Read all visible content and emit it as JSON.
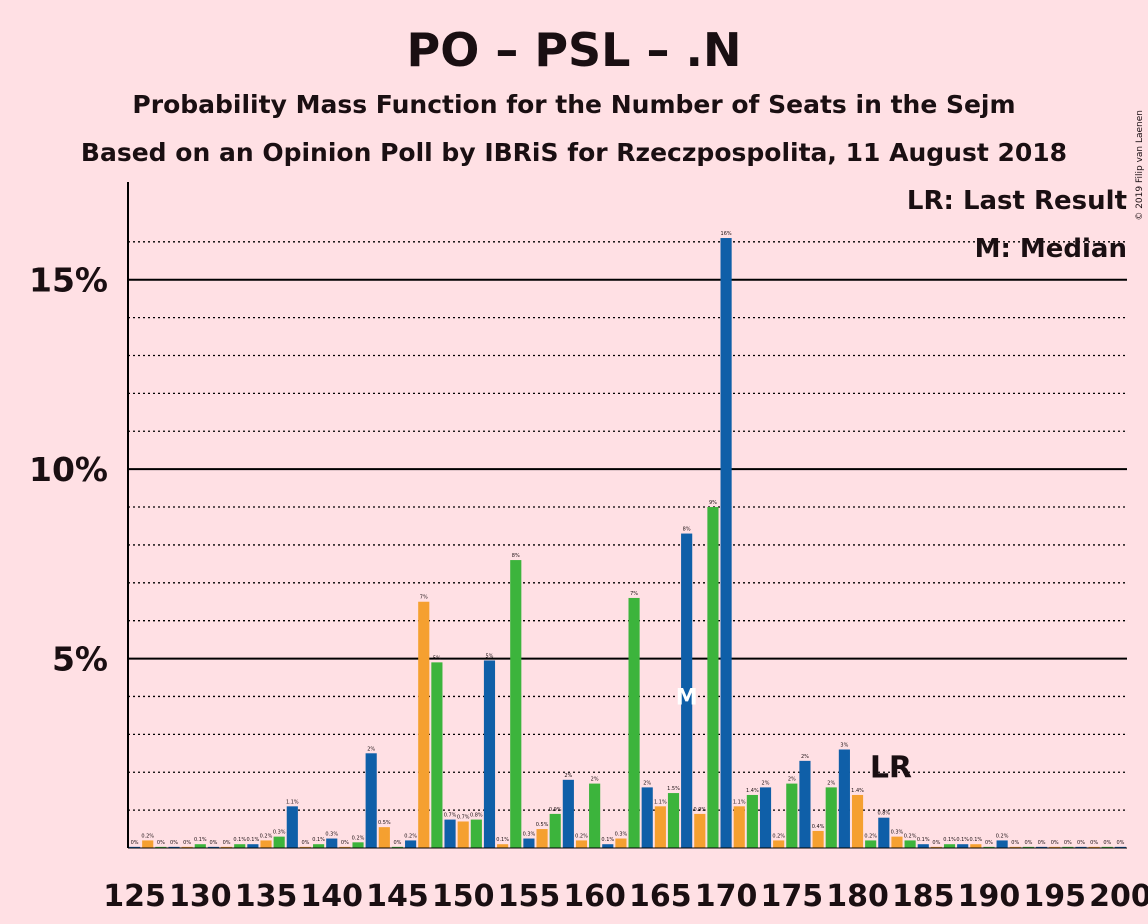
{
  "chart_data": {
    "type": "bar",
    "title": "PO – PSL – .N",
    "subtitle1": "Probability Mass Function for the Number of Seats in the Sejm",
    "subtitle2": "Based on an Opinion Poll by IBRiS for Rzeczpospolita, 11 August 2018",
    "copyright": "© 2019 Filip van Laenen",
    "legend_lr": "LR: Last Result",
    "legend_median": "M: Median",
    "last_result_marker": "LR",
    "median_marker": "M",
    "last_result_seats": 182,
    "median_seats": 167,
    "xlim": [
      124.5,
      200.5
    ],
    "ylim": [
      0,
      17.5
    ],
    "yticks": [
      {
        "value": 5,
        "label": "5%"
      },
      {
        "value": 10,
        "label": "10%"
      },
      {
        "value": 15,
        "label": "15%"
      }
    ],
    "xticks": [
      125,
      130,
      135,
      140,
      145,
      150,
      155,
      160,
      165,
      170,
      175,
      180,
      185,
      190,
      195,
      200
    ],
    "colors": {
      "orange": "#f5a030",
      "green": "#3cb43c",
      "blue": "#0f5fa8",
      "grid": "#000000",
      "text": "#1a0f12"
    },
    "bars": [
      {
        "seats": 125,
        "value": 0.03,
        "label": "0%"
      },
      {
        "seats": 126,
        "value": 0.2,
        "label": "0.2%"
      },
      {
        "seats": 127,
        "value": 0.03,
        "label": "0%"
      },
      {
        "seats": 128,
        "value": 0.03,
        "label": "0%"
      },
      {
        "seats": 129,
        "value": 0.03,
        "label": "0%"
      },
      {
        "seats": 130,
        "value": 0.1,
        "label": "0.1%"
      },
      {
        "seats": 131,
        "value": 0.03,
        "label": "0%"
      },
      {
        "seats": 132,
        "value": 0.03,
        "label": "0%"
      },
      {
        "seats": 133,
        "value": 0.1,
        "label": "0.1%"
      },
      {
        "seats": 134,
        "value": 0.1,
        "label": "0.1%"
      },
      {
        "seats": 135,
        "value": 0.2,
        "label": "0.2%"
      },
      {
        "seats": 136,
        "value": 0.3,
        "label": "0.3%"
      },
      {
        "seats": 137,
        "value": 1.1,
        "label": "1.1%"
      },
      {
        "seats": 138,
        "value": 0.03,
        "label": "0%"
      },
      {
        "seats": 139,
        "value": 0.1,
        "label": "0.1%"
      },
      {
        "seats": 140,
        "value": 0.25,
        "label": "0.3%"
      },
      {
        "seats": 141,
        "value": 0.03,
        "label": "0%"
      },
      {
        "seats": 142,
        "value": 0.15,
        "label": "0.2%"
      },
      {
        "seats": 143,
        "value": 2.5,
        "label": "2%"
      },
      {
        "seats": 144,
        "value": 0.55,
        "label": "0.5%"
      },
      {
        "seats": 145,
        "value": 0.03,
        "label": "0%"
      },
      {
        "seats": 146,
        "value": 0.2,
        "label": "0.2%"
      },
      {
        "seats": 147,
        "value": 6.5,
        "label": "7%"
      },
      {
        "seats": 148,
        "value": 4.9,
        "label": "5%"
      },
      {
        "seats": 149,
        "value": 0.75,
        "label": "0.7%"
      },
      {
        "seats": 150,
        "value": 0.7,
        "label": "0.7%"
      },
      {
        "seats": 151,
        "value": 0.75,
        "label": "0.8%"
      },
      {
        "seats": 152,
        "value": 4.95,
        "label": "5%"
      },
      {
        "seats": 153,
        "value": 0.1,
        "label": "0.1%"
      },
      {
        "seats": 154,
        "value": 7.6,
        "label": "8%"
      },
      {
        "seats": 155,
        "value": 0.25,
        "label": "0.3%"
      },
      {
        "seats": 156,
        "value": 0.5,
        "label": "0.5%"
      },
      {
        "seats": 157,
        "value": 0.9,
        "label": "0.9%"
      },
      {
        "seats": 158,
        "value": 1.8,
        "label": "2%"
      },
      {
        "seats": 159,
        "value": 0.2,
        "label": "0.2%"
      },
      {
        "seats": 160,
        "value": 1.7,
        "label": "2%"
      },
      {
        "seats": 161,
        "value": 0.1,
        "label": "0.1%"
      },
      {
        "seats": 162,
        "value": 0.25,
        "label": "0.3%"
      },
      {
        "seats": 163,
        "value": 6.6,
        "label": "7%"
      },
      {
        "seats": 164,
        "value": 1.6,
        "label": "2%"
      },
      {
        "seats": 165,
        "value": 1.1,
        "label": "1.1%"
      },
      {
        "seats": 166,
        "value": 1.45,
        "label": "1.5%"
      },
      {
        "seats": 167,
        "value": 8.3,
        "label": "8%"
      },
      {
        "seats": 168,
        "value": 0.9,
        "label": "0.9%"
      },
      {
        "seats": 169,
        "value": 9.0,
        "label": "9%"
      },
      {
        "seats": 170,
        "value": 16.1,
        "label": "16%"
      },
      {
        "seats": 171,
        "value": 1.1,
        "label": "1.1%"
      },
      {
        "seats": 172,
        "value": 1.4,
        "label": "1.4%"
      },
      {
        "seats": 173,
        "value": 1.6,
        "label": "2%"
      },
      {
        "seats": 174,
        "value": 0.2,
        "label": "0.2%"
      },
      {
        "seats": 175,
        "value": 1.7,
        "label": "2%"
      },
      {
        "seats": 176,
        "value": 2.3,
        "label": "2%"
      },
      {
        "seats": 177,
        "value": 0.45,
        "label": "0.4%"
      },
      {
        "seats": 178,
        "value": 1.6,
        "label": "2%"
      },
      {
        "seats": 179,
        "value": 2.6,
        "label": "3%"
      },
      {
        "seats": 180,
        "value": 1.4,
        "label": "1.4%"
      },
      {
        "seats": 181,
        "value": 0.2,
        "label": "0.2%"
      },
      {
        "seats": 182,
        "value": 0.8,
        "label": "0.8%"
      },
      {
        "seats": 183,
        "value": 0.3,
        "label": "0.3%"
      },
      {
        "seats": 184,
        "value": 0.2,
        "label": "0.2%"
      },
      {
        "seats": 185,
        "value": 0.1,
        "label": "0.1%"
      },
      {
        "seats": 186,
        "value": 0.03,
        "label": "0%"
      },
      {
        "seats": 187,
        "value": 0.1,
        "label": "0.1%"
      },
      {
        "seats": 188,
        "value": 0.1,
        "label": "0.1%"
      },
      {
        "seats": 189,
        "value": 0.1,
        "label": "0.1%"
      },
      {
        "seats": 190,
        "value": 0.03,
        "label": "0%"
      },
      {
        "seats": 191,
        "value": 0.2,
        "label": "0.2%"
      },
      {
        "seats": 192,
        "value": 0.03,
        "label": "0%"
      },
      {
        "seats": 193,
        "value": 0.03,
        "label": "0%"
      },
      {
        "seats": 194,
        "value": 0.03,
        "label": "0%"
      },
      {
        "seats": 195,
        "value": 0.03,
        "label": "0%"
      },
      {
        "seats": 196,
        "value": 0.03,
        "label": "0%"
      },
      {
        "seats": 197,
        "value": 0.03,
        "label": "0%"
      },
      {
        "seats": 198,
        "value": 0.03,
        "label": "0%"
      },
      {
        "seats": 199,
        "value": 0.03,
        "label": "0%"
      },
      {
        "seats": 200,
        "value": 0.03,
        "label": "0%"
      }
    ]
  }
}
